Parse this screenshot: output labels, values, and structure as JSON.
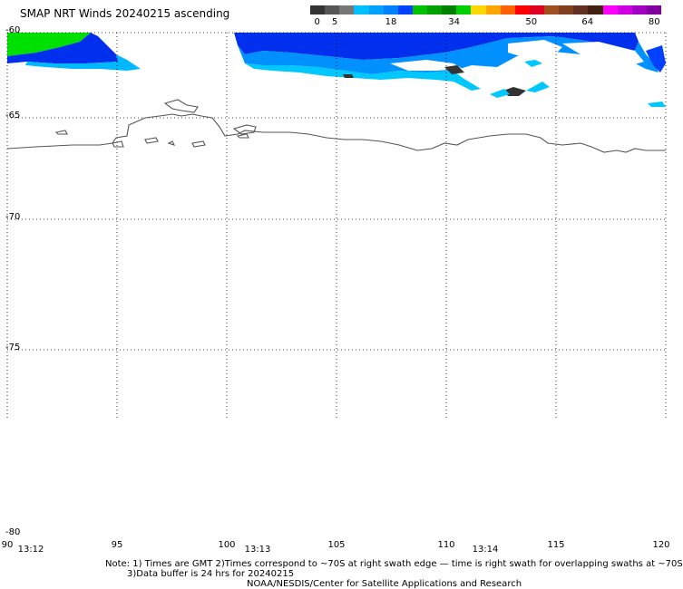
{
  "title": "SMAP NRT Winds 20240215 ascending",
  "legend": {
    "ticks": [
      "0",
      "5",
      "18",
      "34",
      "50",
      "64",
      "80"
    ],
    "colors": [
      "#333333",
      "#555555",
      "#777777",
      "#00bfff",
      "#00a0ff",
      "#0080ff",
      "#0040ff",
      "#00c000",
      "#00a000",
      "#008000",
      "#00d000",
      "#ffd700",
      "#ffa500",
      "#ff6000",
      "#ff0000",
      "#e00020",
      "#a05020",
      "#804020",
      "#603020",
      "#402010",
      "#ff00ff",
      "#d000e0",
      "#a000c0",
      "#8000a0"
    ]
  },
  "map": {
    "lat_labels": [
      "-60",
      "-65",
      "-70",
      "-75",
      "-80"
    ],
    "lon_labels": [
      "90",
      "95",
      "100",
      "105",
      "110",
      "115",
      "120"
    ],
    "time_labels": [
      "13:12",
      "13:13",
      "13:14"
    ]
  },
  "notes": {
    "line1": "Note: 1) Times are GMT 2)Times correspond to ~70S at right swath edge — time is right swath for overlapping swaths at ~70S",
    "line2": "3)Data buffer is 24 hrs for 20240215",
    "line3": "NOAA/NESDIS/Center for Satellite Applications and Research"
  }
}
